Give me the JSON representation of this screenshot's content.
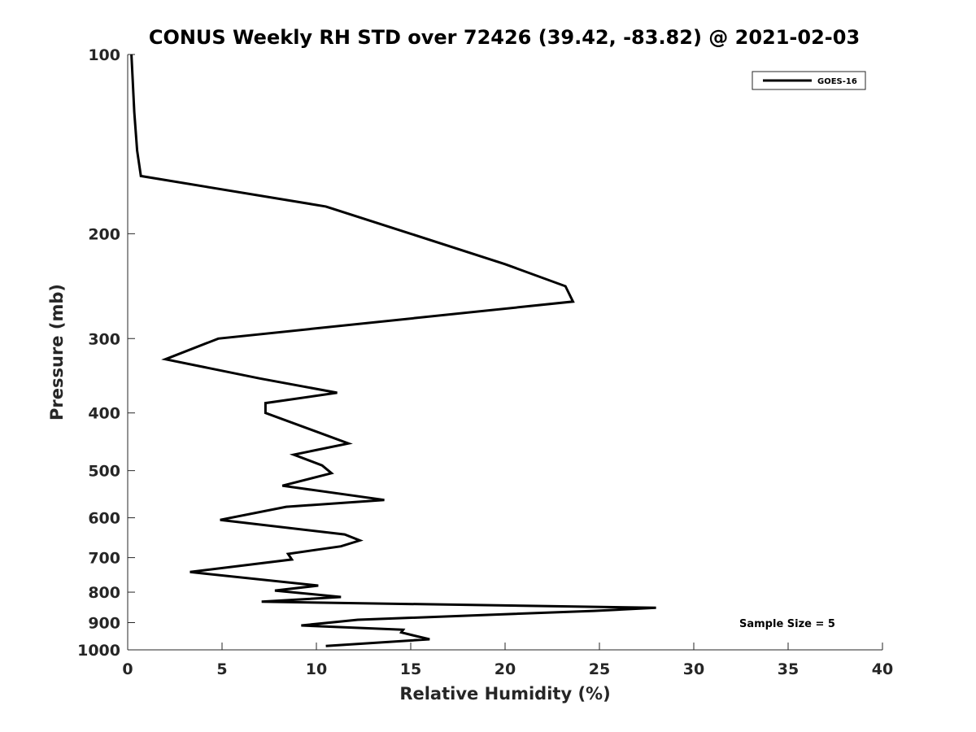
{
  "chart_data": {
    "type": "line",
    "title": "CONUS Weekly RH STD over 72426 (39.42, -83.82) @ 2021-02-03",
    "xlabel": "Relative Humidity (%)",
    "ylabel": "Pressure (mb)",
    "xlim": [
      0,
      40
    ],
    "ylim": [
      100,
      1000
    ],
    "yscale": "log",
    "y_reversed": true,
    "grid": false,
    "legend_position": "top-right",
    "x_ticks": [
      "0",
      "5",
      "10",
      "15",
      "20",
      "25",
      "30",
      "35",
      "40"
    ],
    "y_ticks": [
      "100",
      "200",
      "300",
      "400",
      "500",
      "600",
      "700",
      "800",
      "900",
      "1000"
    ],
    "annotation": "Sample Size = 5",
    "series": [
      {
        "name": "GOES-16",
        "color": "#000000",
        "points": [
          [
            0.2,
            100
          ],
          [
            0.35,
            125
          ],
          [
            0.5,
            145
          ],
          [
            0.7,
            160
          ],
          [
            10.5,
            180
          ],
          [
            15.0,
            200
          ],
          [
            20.0,
            225
          ],
          [
            23.2,
            245
          ],
          [
            23.6,
            260
          ],
          [
            4.8,
            300
          ],
          [
            2.0,
            325
          ],
          [
            7.0,
            350
          ],
          [
            11.1,
            370
          ],
          [
            7.3,
            385
          ],
          [
            7.3,
            400
          ],
          [
            10.0,
            430
          ],
          [
            11.7,
            450
          ],
          [
            8.8,
            470
          ],
          [
            10.3,
            490
          ],
          [
            10.8,
            505
          ],
          [
            8.2,
            530
          ],
          [
            13.6,
            560
          ],
          [
            8.4,
            575
          ],
          [
            4.9,
            605
          ],
          [
            11.5,
            640
          ],
          [
            12.3,
            655
          ],
          [
            11.3,
            670
          ],
          [
            8.5,
            690
          ],
          [
            8.7,
            705
          ],
          [
            3.3,
            740
          ],
          [
            10.1,
            780
          ],
          [
            7.8,
            795
          ],
          [
            11.3,
            815
          ],
          [
            7.1,
            830
          ],
          [
            28.0,
            850
          ],
          [
            24.7,
            860
          ],
          [
            12.2,
            890
          ],
          [
            9.2,
            910
          ],
          [
            14.6,
            925
          ],
          [
            14.5,
            935
          ],
          [
            15.1,
            945
          ],
          [
            16.0,
            960
          ],
          [
            10.5,
            985
          ]
        ]
      }
    ]
  }
}
